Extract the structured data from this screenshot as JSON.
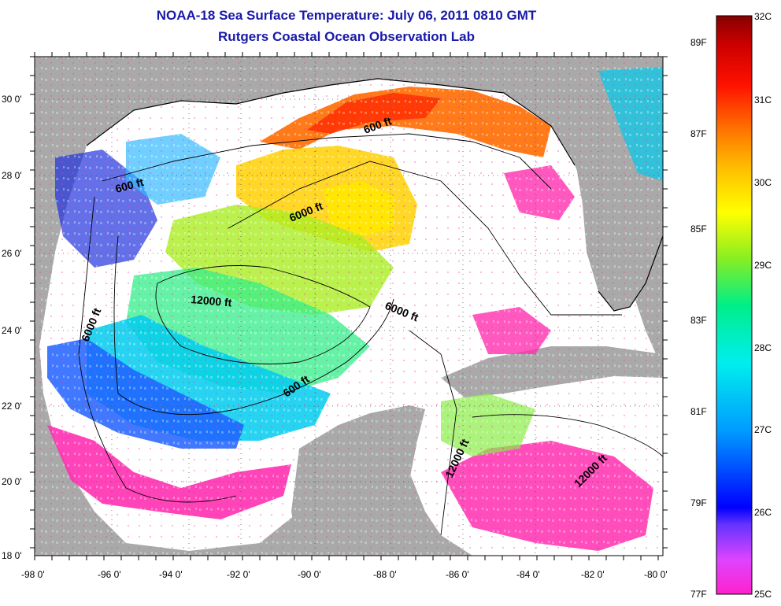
{
  "title": "NOAA-18 Sea Surface Temperature:  July 06, 2011 0810 GMT",
  "subtitle": "Rutgers Coastal Ocean Observation Lab",
  "map": {
    "lon_labels": [
      "-98 0'",
      "-96 0'",
      "-94 0'",
      "-92 0'",
      "-90 0'",
      "-88 0'",
      "-86 0'",
      "-84 0'",
      "-82 0'",
      "-80 0'"
    ],
    "lat_labels": [
      "30 0'",
      "28 0'",
      "26 0'",
      "24 0'",
      "22 0'",
      "20 0'",
      "18 0'"
    ],
    "lon_range": [
      -98,
      -80
    ],
    "lat_range": [
      18,
      31
    ],
    "contour_labels": [
      "600 ft",
      "600 ft",
      "6000 ft",
      "12000 ft",
      "6000 ft",
      "6000 ft",
      "600 ft",
      "12000 ft",
      "12000 ft"
    ],
    "colors": {
      "land": "#a9a9a9",
      "cloud": "#ffffff",
      "contour": "#000000"
    }
  },
  "colorbar": {
    "celsius": [
      "32C",
      "31C",
      "30C",
      "29C",
      "28C",
      "27C",
      "26C",
      "25C"
    ],
    "fahrenheit": [
      "89F",
      "87F",
      "85F",
      "83F",
      "81F",
      "79F",
      "77F"
    ],
    "range_c": [
      25,
      32
    ]
  }
}
